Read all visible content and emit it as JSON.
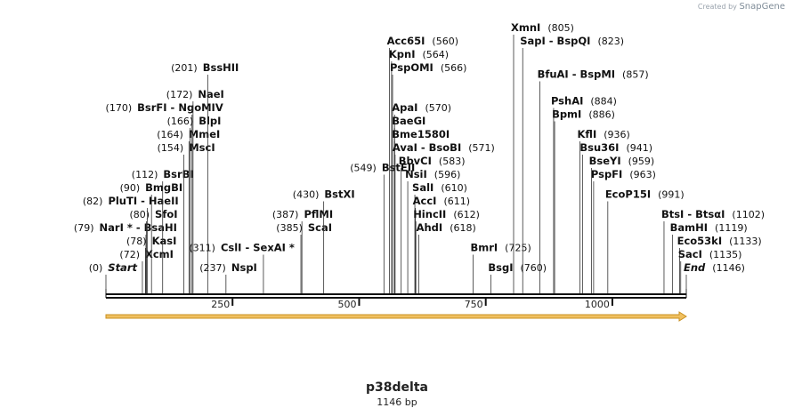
{
  "credit": {
    "prefix": "Created by",
    "brand": "SnapGene"
  },
  "sequence": {
    "name": "p38delta",
    "length_label": "1146 bp",
    "length": 1146
  },
  "ruler": {
    "ticks": [
      250,
      500,
      750,
      1000
    ]
  },
  "features": [
    {
      "name": "orf-arrow",
      "start": 1,
      "end": 1146,
      "color": "#f0c060"
    }
  ],
  "sites": [
    {
      "name": "Start",
      "pos": 0,
      "pos_label": "(0)",
      "italic": true,
      "row": 0,
      "side": "left"
    },
    {
      "name": "XcmI",
      "pos": 72,
      "pos_label": "(72)",
      "row": 1,
      "side": "left"
    },
    {
      "name": "KasI",
      "pos": 78,
      "pos_label": "(78)",
      "row": 2,
      "side": "left"
    },
    {
      "name": "NarI * - BsaHI",
      "pos": 79,
      "pos_label": "(79)",
      "row": 3,
      "side": "left"
    },
    {
      "name": "SfoI",
      "pos": 80,
      "pos_label": "(80)",
      "row": 4,
      "side": "left"
    },
    {
      "name": "PluTI - HaeII",
      "pos": 82,
      "pos_label": "(82)",
      "row": 5,
      "side": "left"
    },
    {
      "name": "BmgBI",
      "pos": 90,
      "pos_label": "(90)",
      "row": 6,
      "side": "left"
    },
    {
      "name": "BsrBI",
      "pos": 112,
      "pos_label": "(112)",
      "row": 7,
      "side": "left"
    },
    {
      "name": "MscI",
      "pos": 154,
      "pos_label": "(154)",
      "row": 9,
      "side": "left"
    },
    {
      "name": "MmeI",
      "pos": 164,
      "pos_label": "(164)",
      "row": 10,
      "side": "left"
    },
    {
      "name": "BlpI",
      "pos": 166,
      "pos_label": "(166)",
      "row": 11,
      "side": "left"
    },
    {
      "name": "BsrFI - NgoMIV",
      "pos": 170,
      "pos_label": "(170)",
      "row": 12,
      "side": "left"
    },
    {
      "name": "NaeI",
      "pos": 172,
      "pos_label": "(172)",
      "row": 13,
      "side": "left"
    },
    {
      "name": "BssHII",
      "pos": 201,
      "pos_label": "(201)",
      "row": 15,
      "side": "left"
    },
    {
      "name": "CslI - SexAI *",
      "pos": 311,
      "pos_label": "(311)",
      "row": 1.5,
      "side": "left"
    },
    {
      "name": "NspI",
      "pos": 237,
      "pos_label": "(237)",
      "row": 0,
      "side": "left"
    },
    {
      "name": "ScaI",
      "pos": 385,
      "pos_label": "(385)",
      "row": 3,
      "side": "left"
    },
    {
      "name": "PflMI",
      "pos": 387,
      "pos_label": "(387)",
      "row": 4,
      "side": "left"
    },
    {
      "name": "BstXI",
      "pos": 430,
      "pos_label": "(430)",
      "row": 5.5,
      "side": "left"
    },
    {
      "name": "BstEII",
      "pos": 549,
      "pos_label": "(549)",
      "row": 7.5,
      "side": "left"
    },
    {
      "name": "Acc65I",
      "pos": 560,
      "pos_label": "(560)",
      "row": 17,
      "side": "right"
    },
    {
      "name": "KpnI",
      "pos": 564,
      "pos_label": "(564)",
      "row": 16,
      "side": "right"
    },
    {
      "name": "PspOMI",
      "pos": 566,
      "pos_label": "(566)",
      "row": 15,
      "side": "right"
    },
    {
      "name": "ApaI",
      "pos": 570,
      "pos_label": "(570)",
      "row": 12,
      "side": "right"
    },
    {
      "name": "BaeGI",
      "pos": 570,
      "pos_label": "",
      "row": 11,
      "side": "right"
    },
    {
      "name": "Bme1580I",
      "pos": 570,
      "pos_label": "",
      "row": 10,
      "side": "right"
    },
    {
      "name": "AvaI - BsoBI",
      "pos": 571,
      "pos_label": "(571)",
      "row": 9,
      "side": "right"
    },
    {
      "name": "BbvCI",
      "pos": 583,
      "pos_label": "(583)",
      "row": 8,
      "side": "right"
    },
    {
      "name": "NsiI",
      "pos": 596,
      "pos_label": "(596)",
      "row": 7,
      "side": "right"
    },
    {
      "name": "SalI",
      "pos": 610,
      "pos_label": "(610)",
      "row": 6,
      "side": "right"
    },
    {
      "name": "AccI",
      "pos": 611,
      "pos_label": "(611)",
      "row": 5,
      "side": "right"
    },
    {
      "name": "HincII",
      "pos": 612,
      "pos_label": "(612)",
      "row": 4,
      "side": "right"
    },
    {
      "name": "AhdI",
      "pos": 618,
      "pos_label": "(618)",
      "row": 3,
      "side": "right"
    },
    {
      "name": "BmrI",
      "pos": 725,
      "pos_label": "(725)",
      "row": 1.5,
      "side": "right"
    },
    {
      "name": "BsgI",
      "pos": 760,
      "pos_label": "(760)",
      "row": 0,
      "side": "right"
    },
    {
      "name": "XmnI",
      "pos": 805,
      "pos_label": "(805)",
      "row": 18,
      "side": "right"
    },
    {
      "name": "SapI - BspQI",
      "pos": 823,
      "pos_label": "(823)",
      "row": 17,
      "side": "right"
    },
    {
      "name": "BfuAI - BspMI",
      "pos": 857,
      "pos_label": "(857)",
      "row": 14.5,
      "side": "right"
    },
    {
      "name": "PshAI",
      "pos": 884,
      "pos_label": "(884)",
      "row": 12.5,
      "side": "right"
    },
    {
      "name": "BpmI",
      "pos": 886,
      "pos_label": "(886)",
      "row": 11.5,
      "side": "right"
    },
    {
      "name": "KflI",
      "pos": 936,
      "pos_label": "(936)",
      "row": 10,
      "side": "right"
    },
    {
      "name": "Bsu36I",
      "pos": 941,
      "pos_label": "(941)",
      "row": 9,
      "side": "right"
    },
    {
      "name": "BseYI",
      "pos": 959,
      "pos_label": "(959)",
      "row": 8,
      "side": "right"
    },
    {
      "name": "PspFI",
      "pos": 963,
      "pos_label": "(963)",
      "row": 7,
      "side": "right"
    },
    {
      "name": "EcoP15I",
      "pos": 991,
      "pos_label": "(991)",
      "row": 5.5,
      "side": "right"
    },
    {
      "name": "BtsI - BtsαI",
      "pos": 1102,
      "pos_label": "(1102)",
      "row": 4,
      "side": "right"
    },
    {
      "name": "BamHI",
      "pos": 1119,
      "pos_label": "(1119)",
      "row": 3,
      "side": "right"
    },
    {
      "name": "Eco53kI",
      "pos": 1133,
      "pos_label": "(1133)",
      "row": 2,
      "side": "right"
    },
    {
      "name": "SacI",
      "pos": 1135,
      "pos_label": "(1135)",
      "row": 1,
      "side": "right"
    },
    {
      "name": "End",
      "pos": 1146,
      "pos_label": "(1146)",
      "italic": true,
      "row": 0,
      "side": "right"
    }
  ]
}
